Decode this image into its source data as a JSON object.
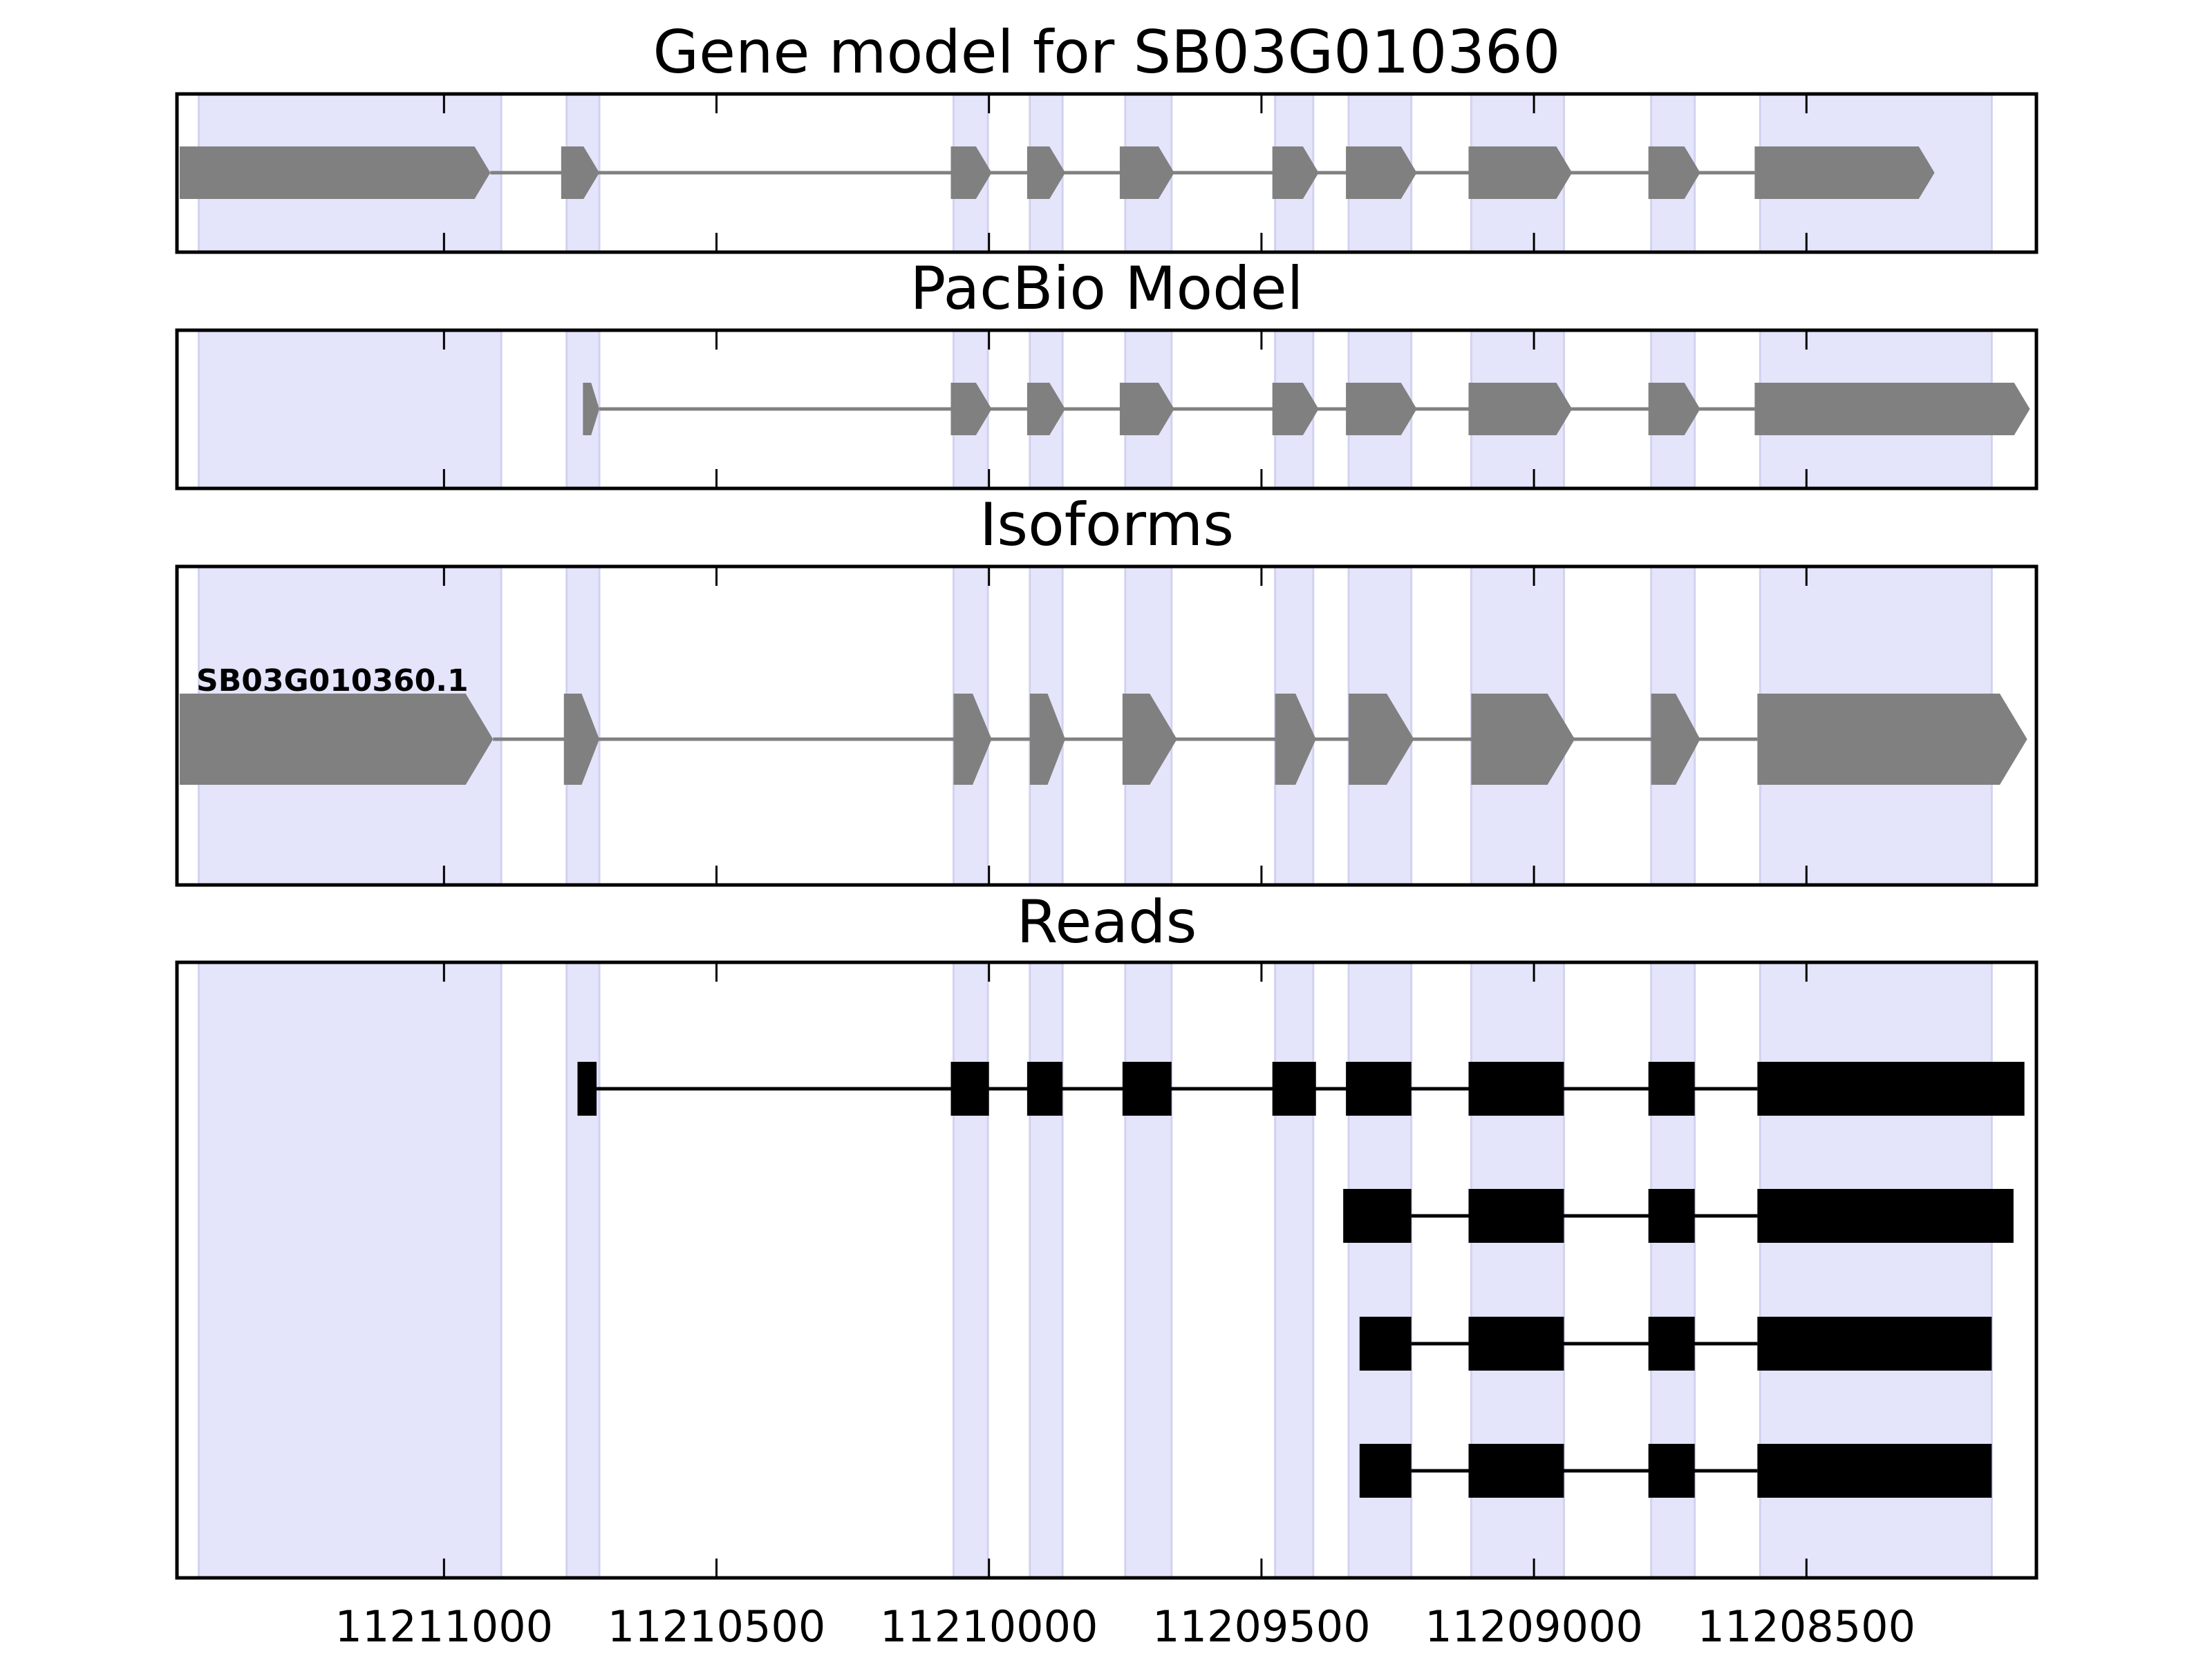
{
  "chart_data": {
    "type": "gene_structure",
    "x_axis": {
      "inverted": true,
      "ticks": [
        11211000,
        11210500,
        11210000,
        11209500,
        11209000,
        11208500
      ],
      "tick_labels": [
        "11211000",
        "11210500",
        "11210000",
        "11209500",
        "11209000",
        "11208500"
      ],
      "range": [
        11211490,
        11208078
      ]
    },
    "highlight_color": "#e4e4fb",
    "exon_color_model": "#808080",
    "exon_color_reads": "#000000",
    "strand": "-",
    "highlighted_regions": [
      [
        11211450,
        11210895
      ],
      [
        11210775,
        11210715
      ],
      [
        11210065,
        11210002
      ],
      [
        11209925,
        11209865
      ],
      [
        11209750,
        11209665
      ],
      [
        11209475,
        11209405
      ],
      [
        11209340,
        11209225
      ],
      [
        11209115,
        11208945
      ],
      [
        11208785,
        11208705
      ],
      [
        11208585,
        11208160
      ]
    ],
    "panels": [
      {
        "title": "Gene model for SB03G010360",
        "style": "model",
        "tracks": [
          {
            "label": "",
            "exons": [
              [
                11211485,
                11210915
              ],
              [
                11210785,
                11210715
              ],
              [
                11210070,
                11209995
              ],
              [
                11209930,
                11209860
              ],
              [
                11209760,
                11209660
              ],
              [
                11209480,
                11209395
              ],
              [
                11209345,
                11209215
              ],
              [
                11209120,
                11208930
              ],
              [
                11208790,
                11208695
              ],
              [
                11208595,
                11208265
              ]
            ]
          }
        ]
      },
      {
        "title": "PacBio Model",
        "style": "model",
        "tracks": [
          {
            "label": "",
            "exons": [
              [
                11210745,
                11210715
              ],
              [
                11210070,
                11209995
              ],
              [
                11209930,
                11209860
              ],
              [
                11209760,
                11209660
              ],
              [
                11209480,
                11209395
              ],
              [
                11209345,
                11209215
              ],
              [
                11209120,
                11208930
              ],
              [
                11208790,
                11208695
              ],
              [
                11208595,
                11208090
              ]
            ]
          }
        ]
      },
      {
        "title": "Isoforms",
        "style": "model",
        "tracks": [
          {
            "label": "SB03G010360.1",
            "exons": [
              [
                11211485,
                11210910
              ],
              [
                11210780,
                11210715
              ],
              [
                11210065,
                11209995
              ],
              [
                11209925,
                11209860
              ],
              [
                11209755,
                11209655
              ],
              [
                11209475,
                11209400
              ],
              [
                11209340,
                11209220
              ],
              [
                11209115,
                11208925
              ],
              [
                11208785,
                11208695
              ],
              [
                11208590,
                11208095
              ]
            ]
          }
        ]
      },
      {
        "title": "Reads",
        "style": "reads",
        "tracks": [
          {
            "exons": [
              [
                11210755,
                11210720
              ],
              [
                11210070,
                11210000
              ],
              [
                11209930,
                11209865
              ],
              [
                11209755,
                11209665
              ],
              [
                11209480,
                11209400
              ],
              [
                11209345,
                11209225
              ],
              [
                11209120,
                11208945
              ],
              [
                11208790,
                11208705
              ],
              [
                11208590,
                11208100
              ]
            ]
          },
          {
            "exons": [
              [
                11209350,
                11209225
              ],
              [
                11209120,
                11208945
              ],
              [
                11208790,
                11208705
              ],
              [
                11208590,
                11208120
              ]
            ]
          },
          {
            "exons": [
              [
                11209320,
                11209225
              ],
              [
                11209120,
                11208945
              ],
              [
                11208790,
                11208705
              ],
              [
                11208590,
                11208160
              ]
            ]
          },
          {
            "exons": [
              [
                11209320,
                11209225
              ],
              [
                11209120,
                11208945
              ],
              [
                11208790,
                11208705
              ],
              [
                11208590,
                11208160
              ]
            ]
          }
        ]
      }
    ]
  }
}
